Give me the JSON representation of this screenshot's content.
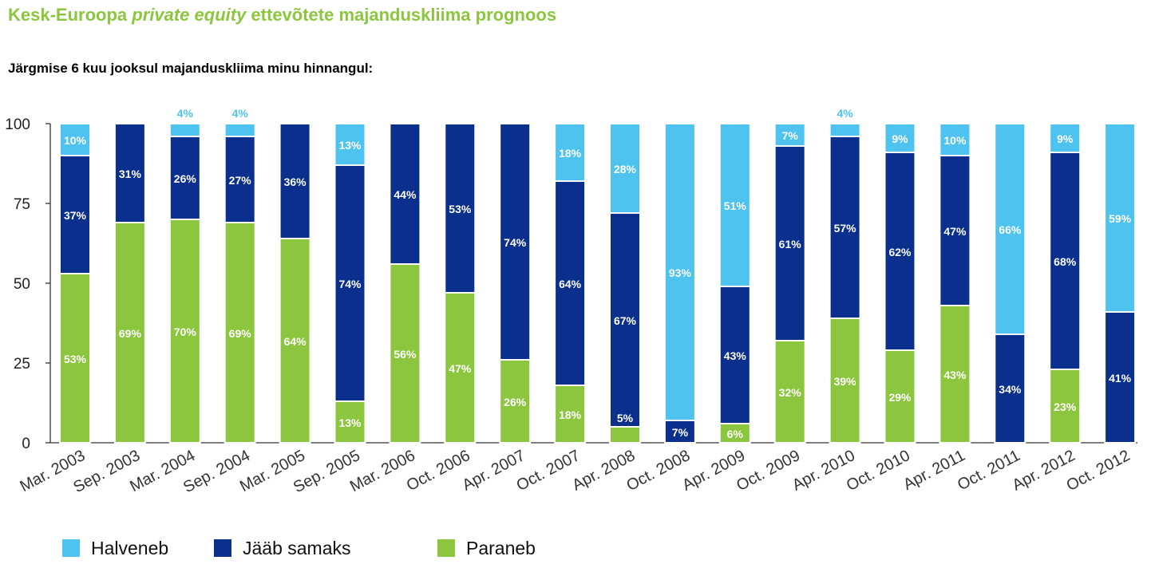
{
  "title": {
    "part1": "Kesk-Euroopa ",
    "part2": "private equity",
    "part3": " ettevõtete majanduskliima prognoos"
  },
  "subtitle": "Järgmise 6 kuu jooksul majanduskliima minu hinnangul:",
  "legend": [
    {
      "label": "Halveneb",
      "color": "#4fc3f0"
    },
    {
      "label": "Jääb samaks",
      "color": "#0b2f8c"
    },
    {
      "label": "Paraneb",
      "color": "#8cc63f"
    }
  ],
  "chart_data": {
    "type": "bar",
    "stacked": true,
    "categories": [
      "Mar. 2003",
      "Sep. 2003",
      "Mar. 2004",
      "Sep. 2004",
      "Mar. 2005",
      "Sep. 2005",
      "Mar. 2006",
      "Oct. 2006",
      "Apr. 2007",
      "Oct. 2007",
      "Apr. 2008",
      "Oct. 2008",
      "Apr. 2009",
      "Oct. 2009",
      "Apr. 2010",
      "Oct. 2010",
      "Apr. 2011",
      "Oct. 2011",
      "Apr. 2012",
      "Oct. 2012"
    ],
    "series": [
      {
        "name": "Paraneb",
        "color": "#8cc63f",
        "values": [
          53,
          69,
          70,
          69,
          64,
          13,
          56,
          47,
          26,
          18,
          5,
          0,
          6,
          32,
          39,
          29,
          43,
          0,
          23,
          0
        ],
        "labels": [
          "53%",
          "69%",
          "70%",
          "69%",
          "64%",
          "13%",
          "56%",
          "47%",
          "26%",
          "18%",
          "",
          "",
          "6%",
          "32%",
          "39%",
          "29%",
          "43%",
          "",
          "23%",
          ""
        ]
      },
      {
        "name": "Jääb samaks",
        "color": "#0b2f8c",
        "values": [
          37,
          31,
          26,
          27,
          36,
          74,
          44,
          53,
          74,
          64,
          67,
          7,
          43,
          61,
          57,
          62,
          47,
          34,
          68,
          41
        ],
        "labels": [
          "37%",
          "31%",
          "26%",
          "27%",
          "36%",
          "74%",
          "44%",
          "53%",
          "74%",
          "64%",
          "67%",
          "7%",
          "43%",
          "61%",
          "57%",
          "62%",
          "47%",
          "34%",
          "68%",
          "41%"
        ],
        "extra_labels": {
          "10": "5%"
        }
      },
      {
        "name": "Halveneb",
        "color": "#4fc3f0",
        "values": [
          10,
          0,
          4,
          4,
          0,
          13,
          0,
          0,
          0,
          18,
          28,
          93,
          51,
          7,
          4,
          9,
          10,
          66,
          9,
          59
        ],
        "labels": [
          "10%",
          "",
          "4%",
          "4%",
          "",
          "13%",
          "",
          "",
          "",
          "18%",
          "28%",
          "93%",
          "51%",
          "7%",
          "4%",
          "9%",
          "10%",
          "66%",
          "9%",
          "59%"
        ]
      }
    ],
    "ylim": [
      0,
      100
    ],
    "yticks": [
      "0",
      "25",
      "50",
      "75",
      "100"
    ],
    "grid": false,
    "legend_position": "bottom"
  }
}
